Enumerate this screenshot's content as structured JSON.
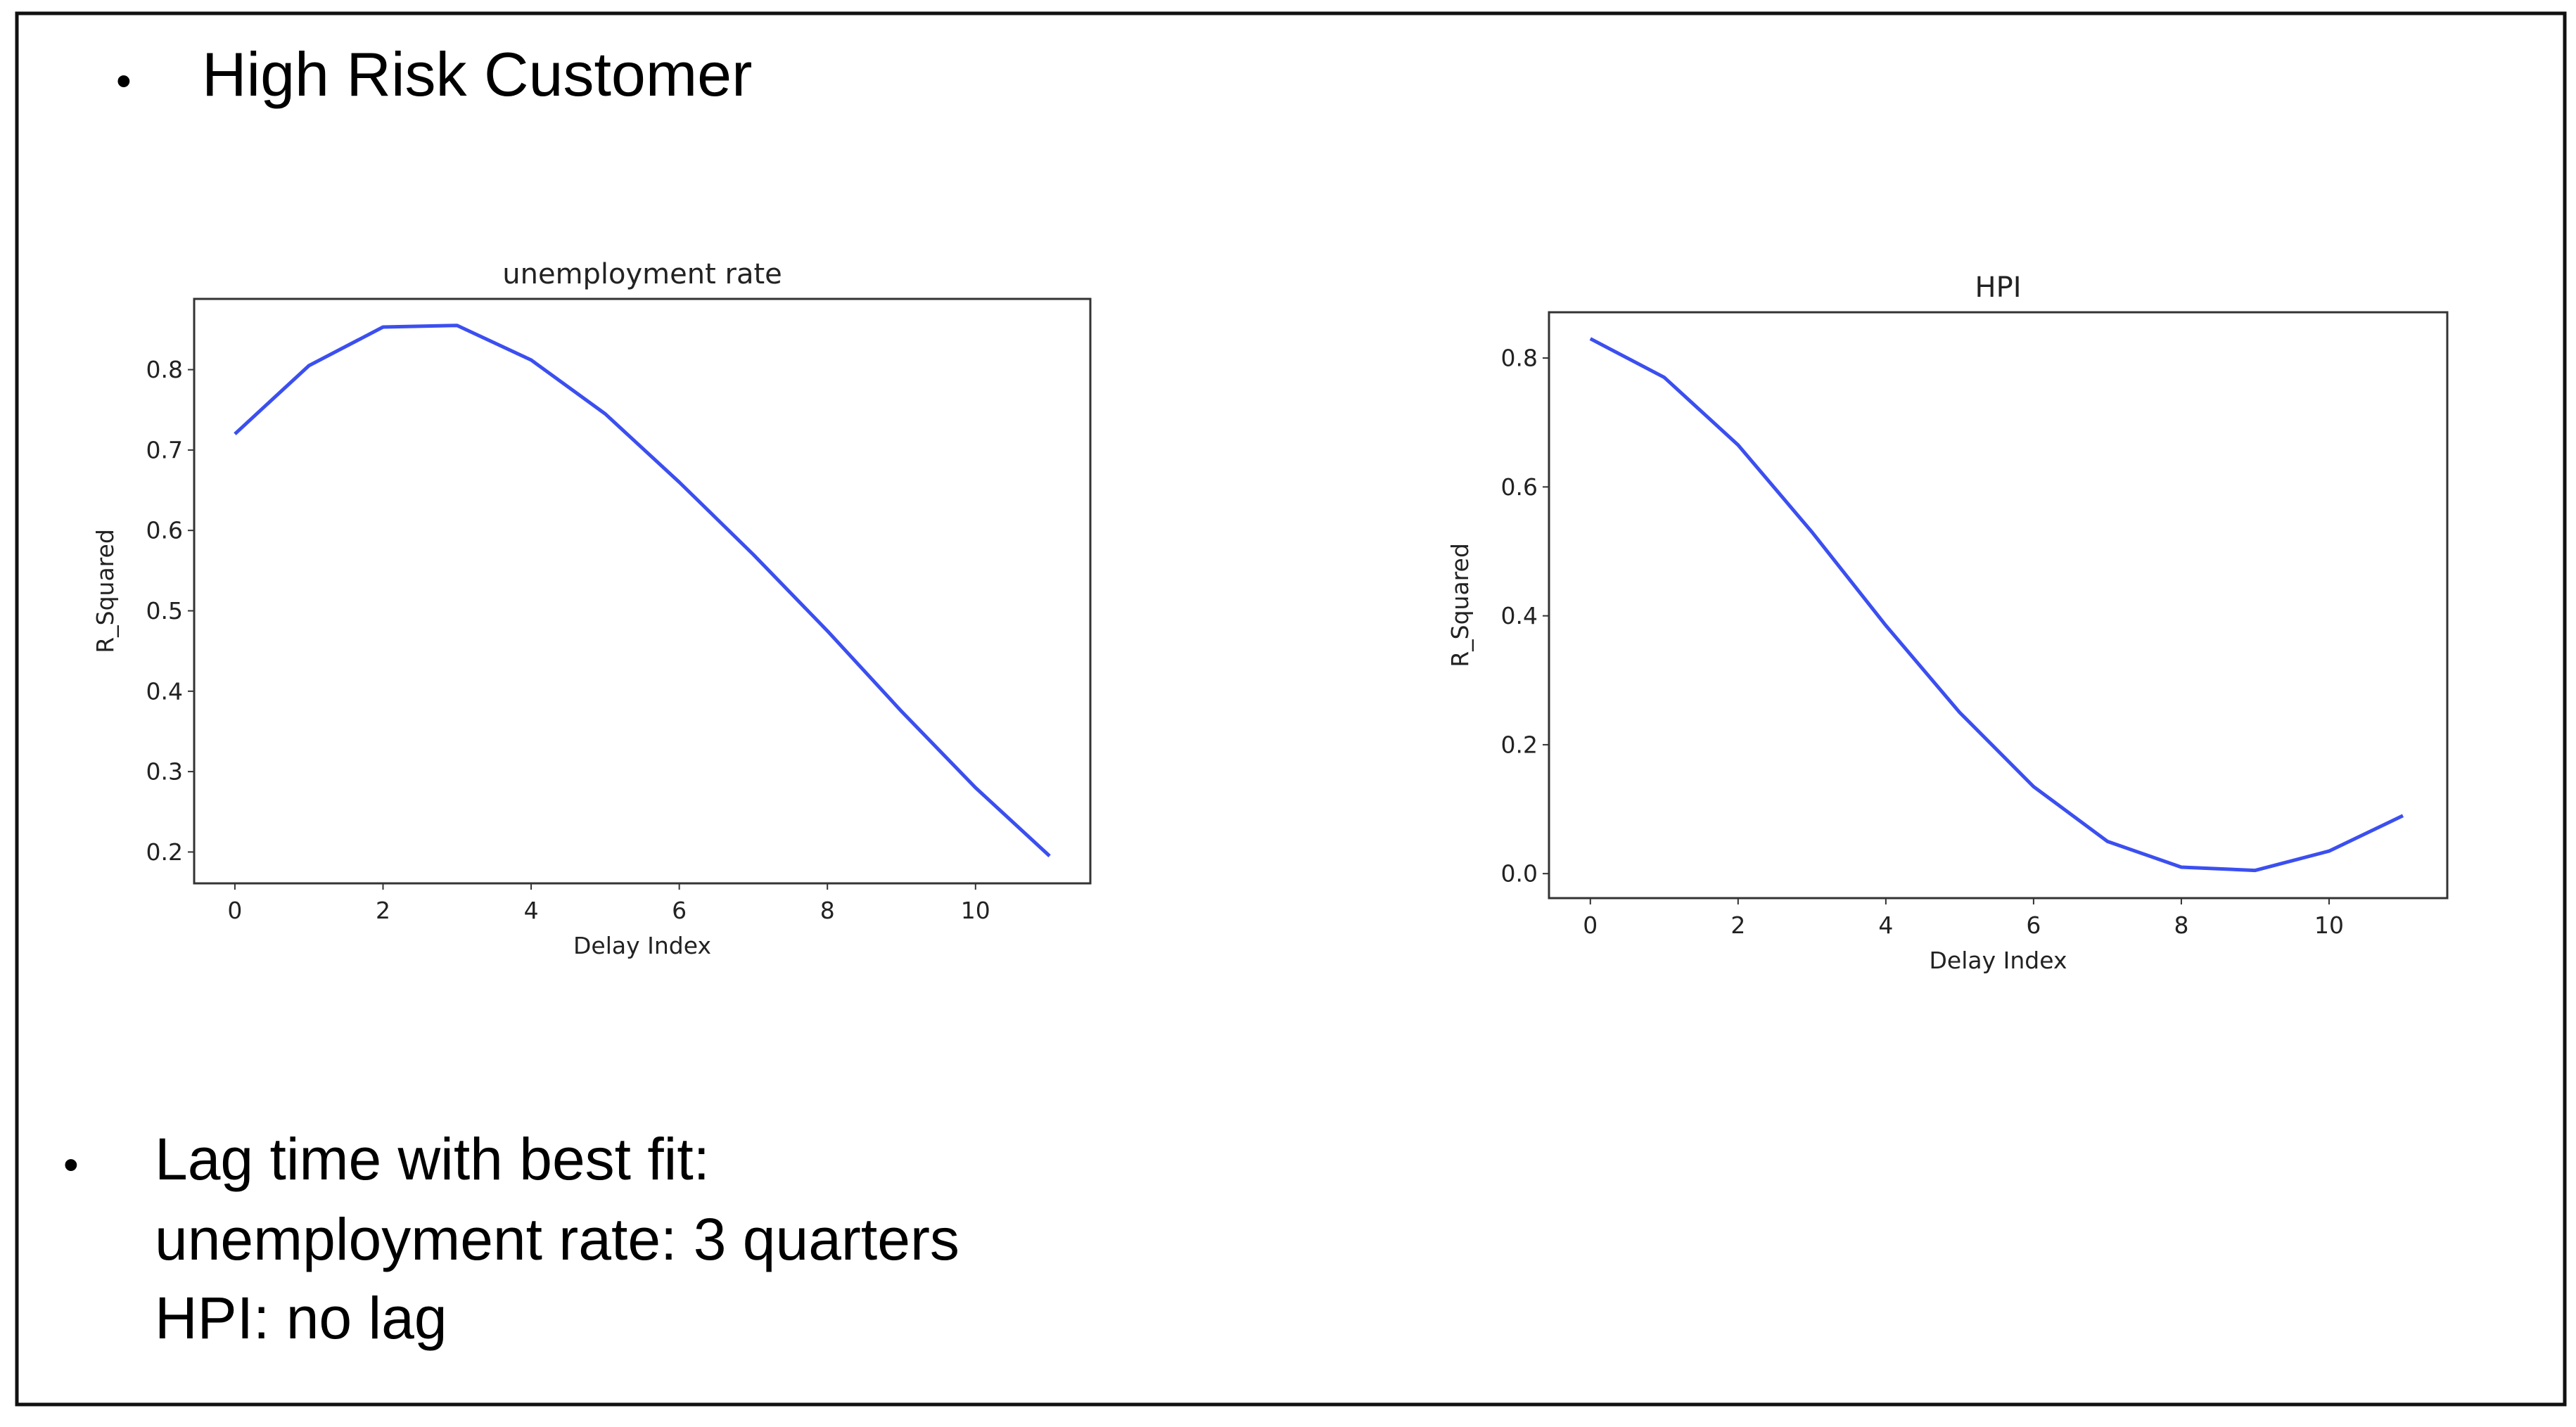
{
  "header": {
    "title": "High Risk Customer"
  },
  "summary": {
    "lines": [
      "Lag time with best fit:",
      "unemployment rate: 3 quarters",
      "HPI: no lag"
    ]
  },
  "chart_data": [
    {
      "type": "line",
      "title": "unemployment rate",
      "x_label": "Delay Index",
      "y_label": "R_Squared",
      "x": [
        0,
        1,
        2,
        3,
        4,
        5,
        6,
        7,
        8,
        9,
        10,
        11
      ],
      "series": [
        {
          "color": "#3b4ff0",
          "values": [
            0.72,
            0.805,
            0.853,
            0.855,
            0.812,
            0.745,
            0.66,
            0.57,
            0.475,
            0.375,
            0.28,
            0.195
          ]
        }
      ],
      "xlim": [
        -0.55,
        11.55
      ],
      "xticks": [
        0,
        2,
        4,
        6,
        8,
        10
      ],
      "ylim": [
        0.161,
        0.888
      ],
      "yticks": [
        0.2,
        0.3,
        0.4,
        0.5,
        0.6,
        0.7,
        0.8
      ],
      "grid": false
    },
    {
      "type": "line",
      "title": "HPI",
      "x_label": "Delay Index",
      "y_label": "R_Squared",
      "x": [
        0,
        1,
        2,
        3,
        4,
        5,
        6,
        7,
        8,
        9,
        10,
        11
      ],
      "series": [
        {
          "color": "#3b4ff0",
          "values": [
            0.83,
            0.77,
            0.665,
            0.53,
            0.385,
            0.25,
            0.135,
            0.05,
            0.01,
            0.005,
            0.035,
            0.09
          ]
        }
      ],
      "xlim": [
        -0.56,
        11.6
      ],
      "xticks": [
        0,
        2,
        4,
        6,
        8,
        10
      ],
      "ylim": [
        -0.038,
        0.871
      ],
      "yticks": [
        {
          "value": 0,
          "label": "0.0"
        },
        0.2,
        0.4,
        0.6,
        0.8
      ],
      "grid": false
    }
  ]
}
